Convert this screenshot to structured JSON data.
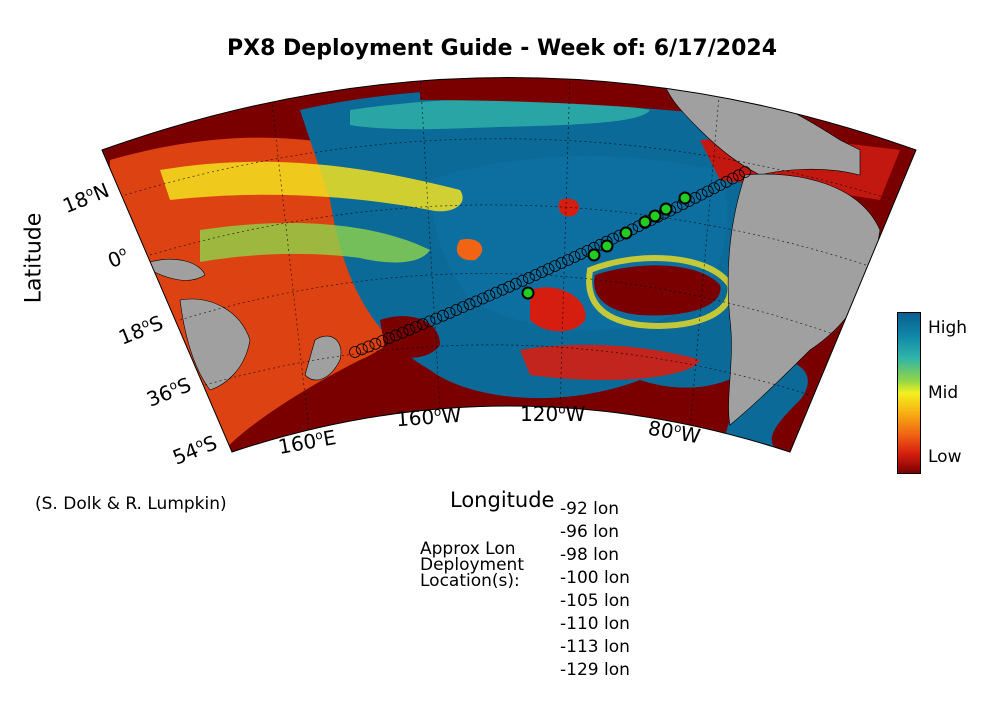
{
  "title": "PX8 Deployment Guide - Week of: 6/17/2024",
  "axes": {
    "ylabel": "Latitude",
    "xlabel": "Longitude",
    "lat_ticks": [
      {
        "deg": "18",
        "hemi": "N"
      },
      {
        "deg": "0",
        "hemi": ""
      },
      {
        "deg": "18",
        "hemi": "S"
      },
      {
        "deg": "36",
        "hemi": "S"
      },
      {
        "deg": "54",
        "hemi": "S"
      }
    ],
    "lon_ticks": [
      {
        "deg": "160",
        "hemi": "E"
      },
      {
        "deg": "160",
        "hemi": "W"
      },
      {
        "deg": "120",
        "hemi": "W"
      },
      {
        "deg": "80",
        "hemi": "W"
      }
    ]
  },
  "colorbar": {
    "labels": [
      "High",
      "Mid",
      "Low"
    ],
    "colors": [
      "#0b5f8f",
      "#f3f020",
      "#7a0000"
    ]
  },
  "credit": "(S. Dolk & R. Lumpkin)",
  "deployment": {
    "label_lines": [
      "Approx Lon",
      "Deployment",
      "Location(s):"
    ],
    "locations": [
      "-92 lon",
      "-96 lon",
      "-98 lon",
      "-100 lon",
      "-105 lon",
      "-110 lon",
      "-113 lon",
      "-129 lon"
    ]
  },
  "map_colors": {
    "ocean_low": "#7a0000",
    "ocean_high": "#0b5f8f",
    "land": "#a0a0a0",
    "marker_fill": "#22cc22"
  }
}
